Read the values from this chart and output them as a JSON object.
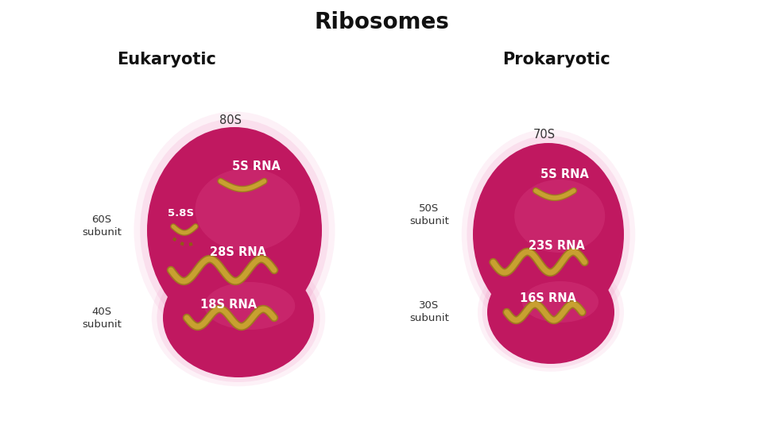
{
  "title": "Ribosomes",
  "title_fontsize": 20,
  "title_fontweight": "bold",
  "bg_color": "#ffffff",
  "eukaryotic_label": "Eukaryotic",
  "prokaryotic_label": "Prokaryotic",
  "label_fontsize": 15,
  "label_fontweight": "bold",
  "ribosome_color_dark": "#C01860",
  "ribosome_color_highlight": "#D84080",
  "glow_color": "#F090C0",
  "rna_color": "#C8A030",
  "rna_edge": "#A07820",
  "text_white": "#ffffff",
  "text_dark": "#111111",
  "text_gray": "#333333"
}
